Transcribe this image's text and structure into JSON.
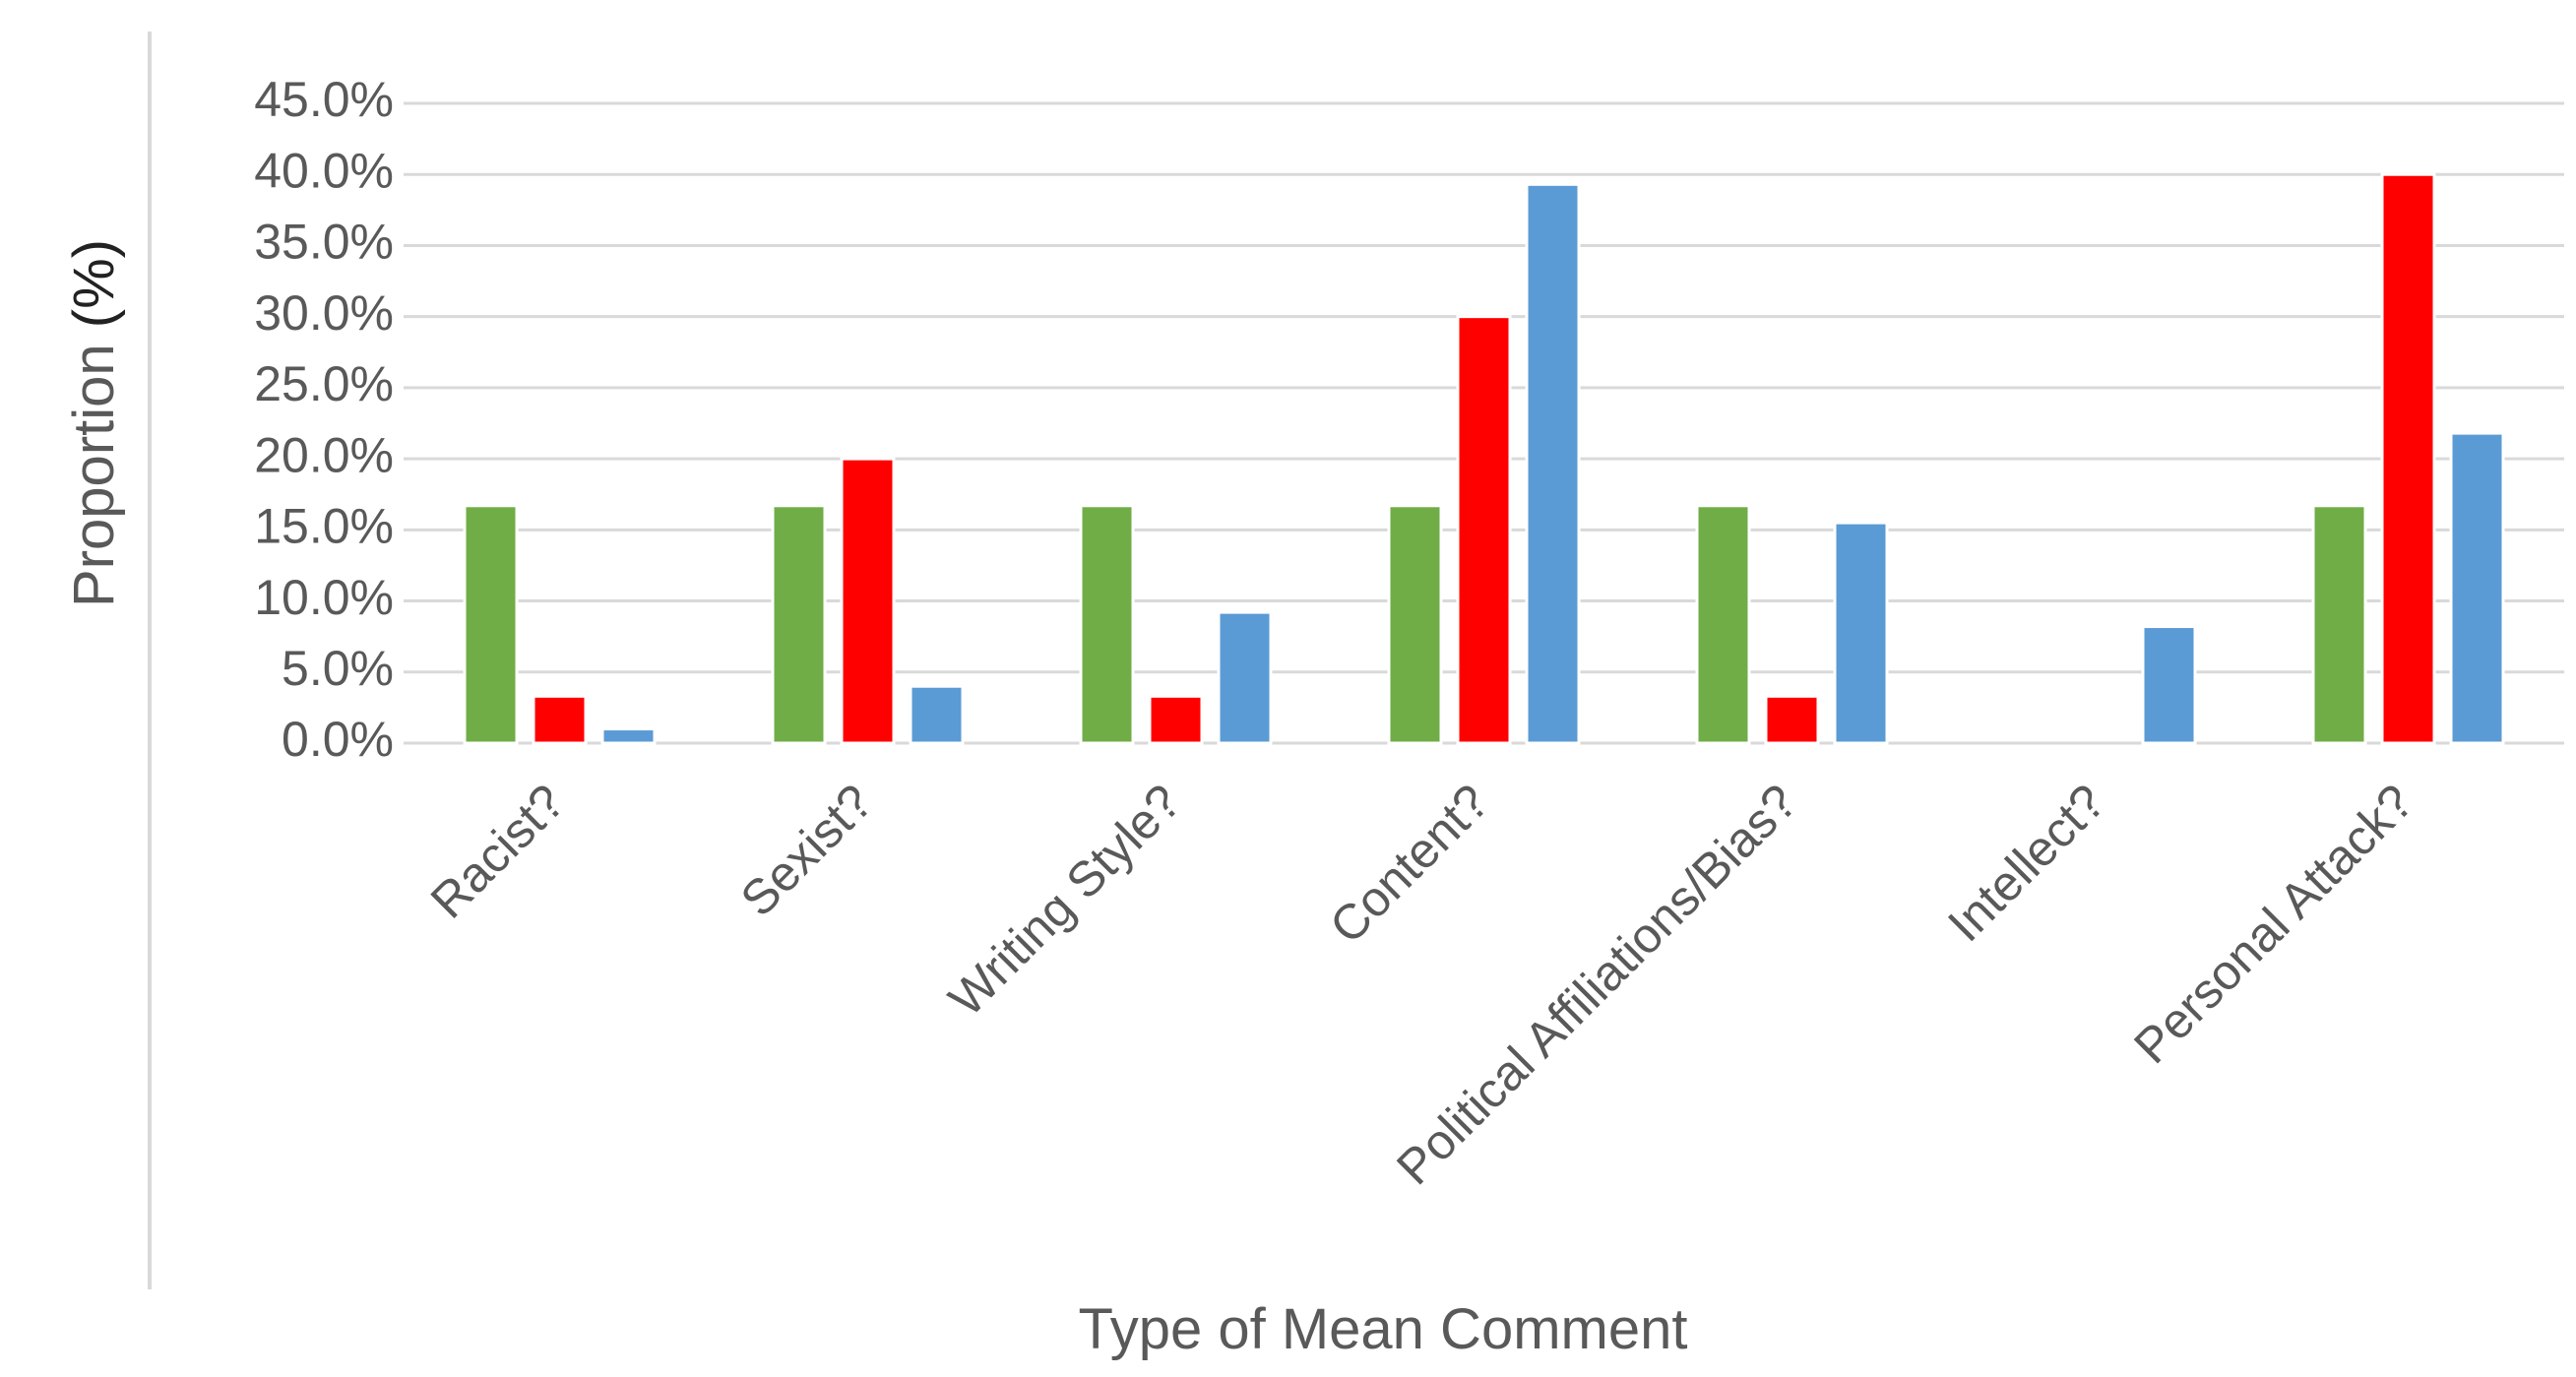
{
  "chart_data": {
    "type": "bar",
    "xlabel": "Type of Mean Comment",
    "ylabel": "Proportion (%)",
    "ylim": [
      0,
      45
    ],
    "y_ticks": [
      "0.0%",
      "5.0%",
      "10.0%",
      "15.0%",
      "20.0%",
      "25.0%",
      "30.0%",
      "35.0%",
      "40.0%",
      "45.0%"
    ],
    "y_tick_values": [
      0,
      5,
      10,
      15,
      20,
      25,
      30,
      35,
      40,
      45
    ],
    "grid": true,
    "legend": "none",
    "categories": [
      "Racist?",
      "Sexist?",
      "Writing Style?",
      "Content?",
      "Political Affiliations/Bias?",
      "Intellect?",
      "Personal Attack?"
    ],
    "series": [
      {
        "color": "#70ad47",
        "values": [
          16.7,
          16.7,
          16.7,
          16.7,
          16.7,
          0.0,
          16.7
        ]
      },
      {
        "color": "#ff0000",
        "values": [
          3.3,
          20.0,
          3.3,
          30.0,
          3.3,
          0.0,
          40.0
        ]
      },
      {
        "color": "#5b9bd5",
        "values": [
          1.0,
          4.0,
          9.2,
          39.3,
          15.5,
          8.2,
          21.8
        ]
      }
    ]
  }
}
